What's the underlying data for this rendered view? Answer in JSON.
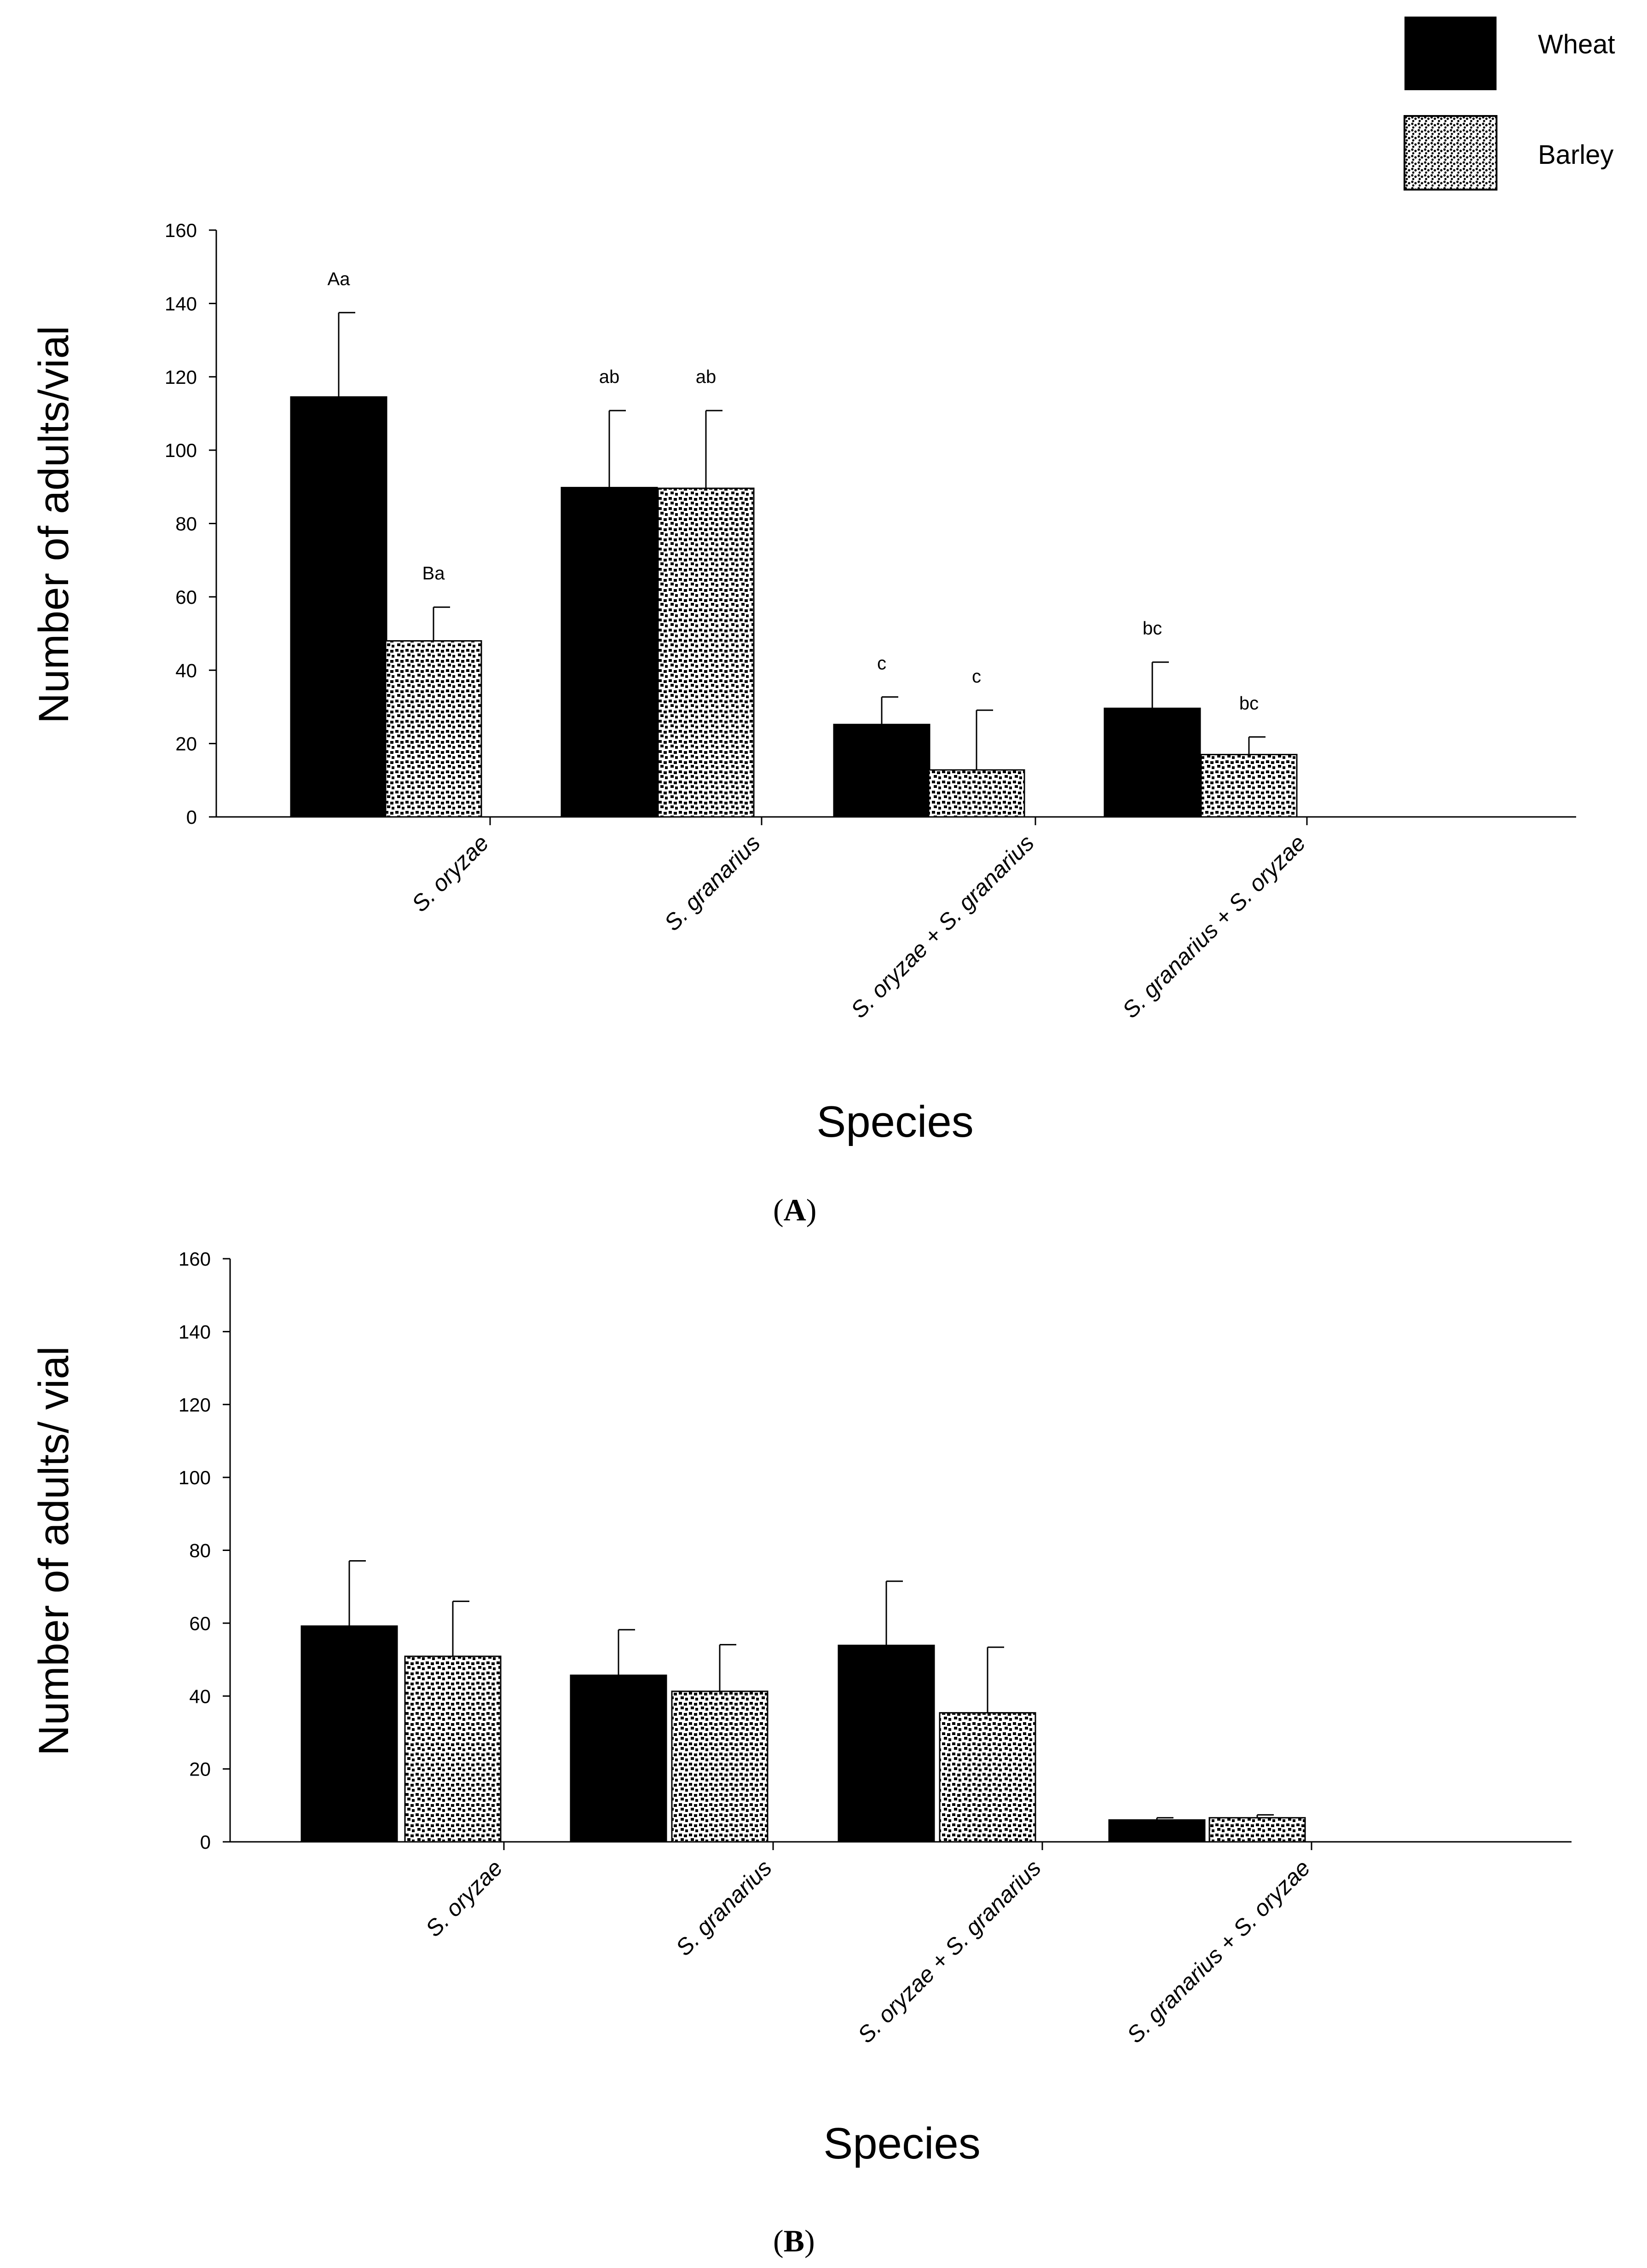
{
  "legend": {
    "items": [
      {
        "name": "Wheat",
        "fill": "#000000",
        "pattern": "solid"
      },
      {
        "name": "Barley",
        "fill": "#c8c8c8",
        "pattern": "dotted"
      }
    ]
  },
  "chart_data": [
    {
      "type": "bar",
      "panel": "A",
      "title": "",
      "xlabel": "Species",
      "ylabel": "Number of adults/vial",
      "ylim": [
        0,
        160
      ],
      "yticks": [
        "0",
        "20",
        "40",
        "60",
        "80",
        "100",
        "120",
        "140",
        "160"
      ],
      "categories": [
        "S. oryzae",
        "S. granarius",
        "S. oryzae + S. granarius",
        "S. granarius + S. oryzae"
      ],
      "series": [
        {
          "name": "Wheat",
          "values": [
            114.5,
            89.8,
            25.2,
            29.6
          ],
          "errors": [
            23.0,
            21.0,
            7.5,
            12.6
          ],
          "labels": [
            "Aa",
            "ab",
            "c",
            "bc"
          ]
        },
        {
          "name": "Barley",
          "values": [
            48.0,
            89.6,
            12.8,
            17.0
          ],
          "errors": [
            9.2,
            21.2,
            16.3,
            4.8
          ],
          "labels": [
            "Ba",
            "ab",
            "c",
            "bc"
          ]
        }
      ]
    },
    {
      "type": "bar",
      "panel": "B",
      "title": "",
      "xlabel": "Species",
      "ylabel": "Number of adults/ vial",
      "ylim": [
        0,
        160
      ],
      "yticks": [
        "0",
        "20",
        "40",
        "60",
        "80",
        "100",
        "120",
        "140",
        "160"
      ],
      "categories": [
        "S. oryzae",
        "S. granarius",
        "S. oryzae + S. granarius",
        "S. granarius + S. oryzae"
      ],
      "series": [
        {
          "name": "Wheat",
          "values": [
            59.2,
            45.7,
            53.9,
            6.0
          ],
          "errors": [
            17.9,
            12.5,
            17.6,
            0.6
          ],
          "labels": [
            "",
            "",
            "",
            ""
          ]
        },
        {
          "name": "Barley",
          "values": [
            50.9,
            41.3,
            35.4,
            6.6
          ],
          "errors": [
            15.1,
            12.8,
            18.0,
            0.8
          ],
          "labels": [
            "",
            "",
            "",
            ""
          ]
        }
      ]
    }
  ]
}
